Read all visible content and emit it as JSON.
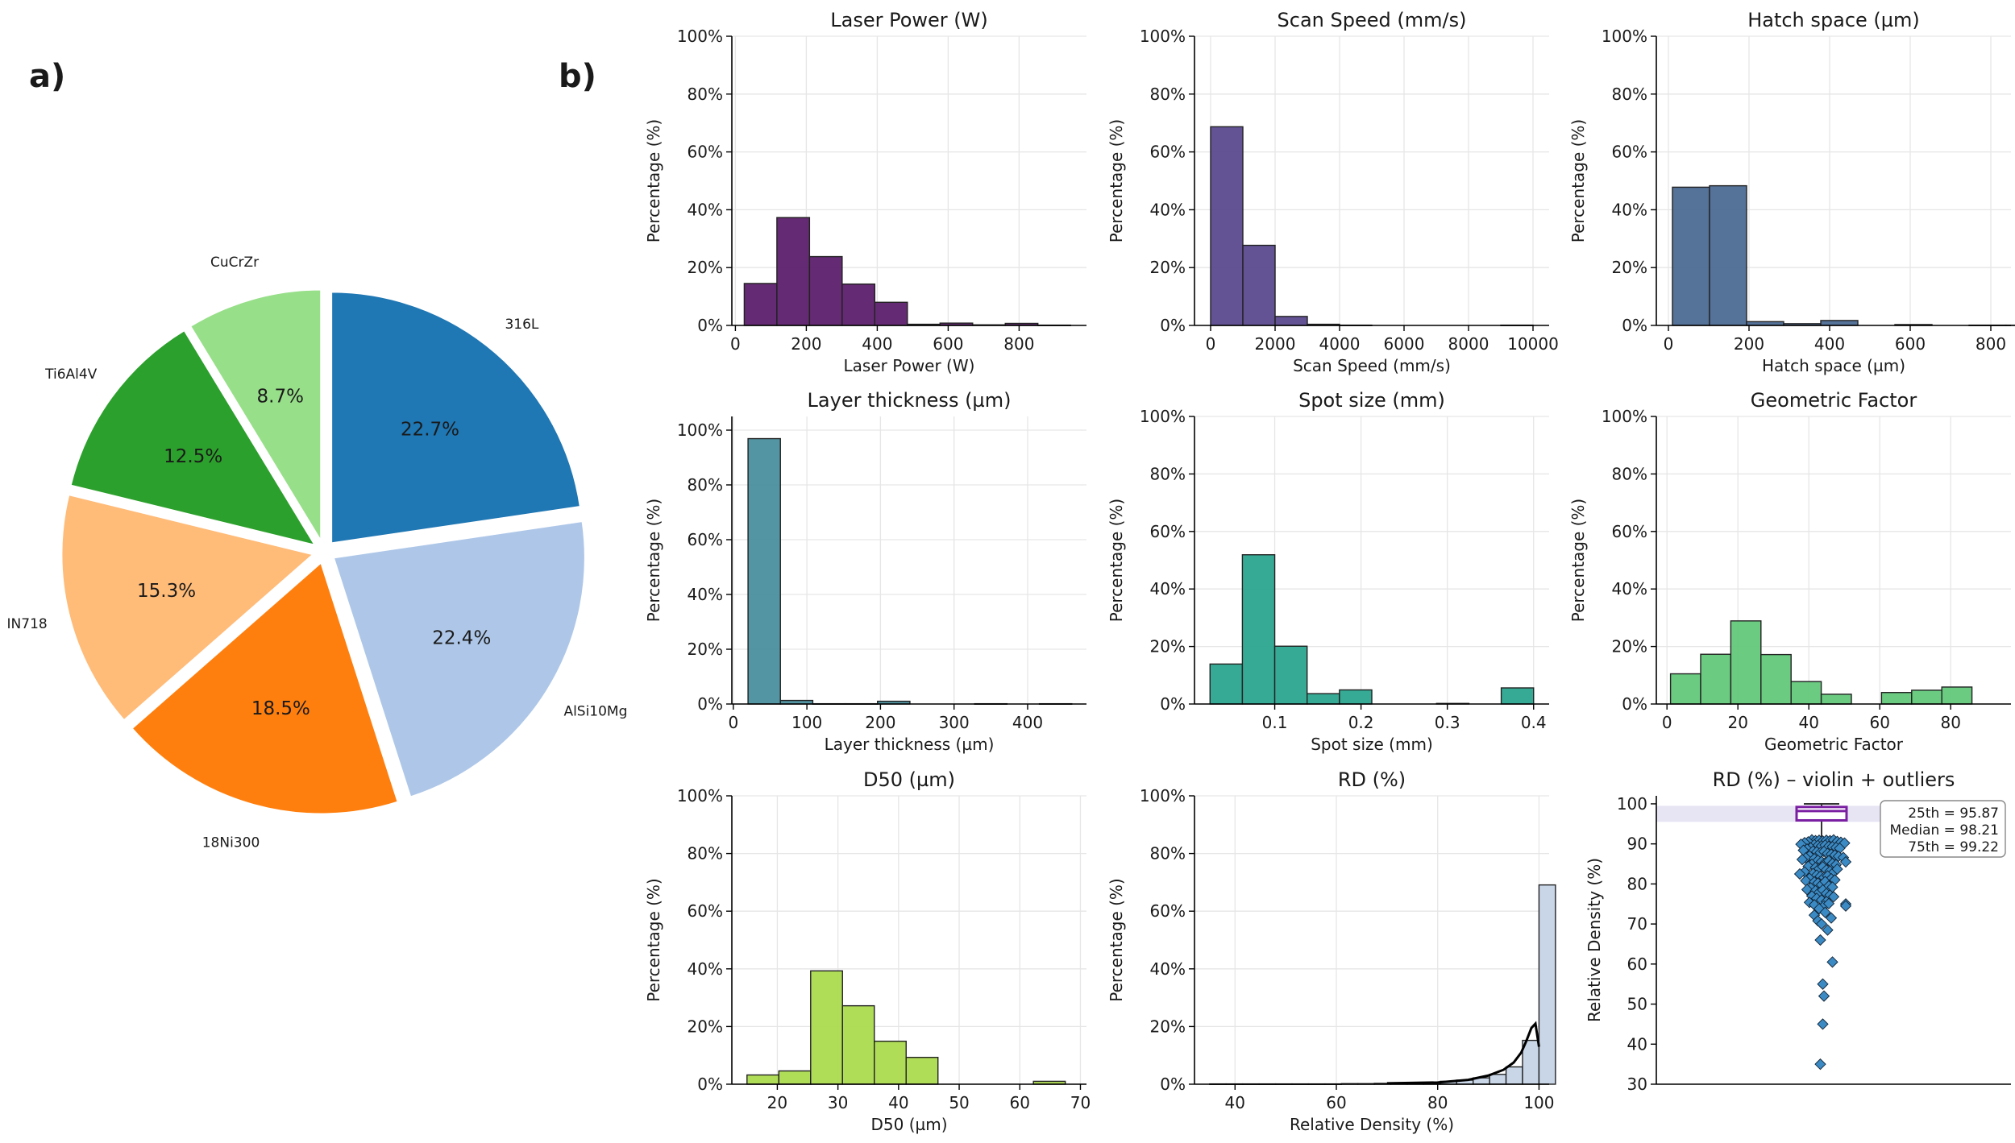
{
  "panel_labels": {
    "a": "a)",
    "b": "b)"
  },
  "colors": {
    "pie": [
      "#1f77b4",
      "#aec7e8",
      "#ff7f0e",
      "#ffbb78",
      "#2ca02c",
      "#98df8a"
    ],
    "laser_power": "#5c1f6b",
    "scan_speed": "#5b4a8f",
    "hatch_space": "#4c6a93",
    "layer_thickness": "#4a8f9e",
    "spot_size": "#2ba58f",
    "geometric_factor": "#62c87a",
    "d50": "#acdb4f",
    "rd": "#c9d6e8",
    "violin_box": "#7a1fa2",
    "scatter": "#3b8ac4"
  },
  "chart_data": [
    {
      "id": "materials",
      "type": "pie",
      "title": "",
      "labels": [
        "316L",
        "AlSi10Mg",
        "18Ni300",
        "IN718",
        "Ti6Al4V",
        "CuCrZr"
      ],
      "values": [
        22.7,
        22.4,
        18.5,
        15.3,
        12.5,
        8.7
      ],
      "autopct": [
        "22.7%",
        "22.4%",
        "18.5%",
        "15.3%",
        "12.5%",
        "8.7%"
      ],
      "start_angle_deg": 90,
      "direction": "clockwise",
      "exploded": true
    },
    {
      "id": "laser_power",
      "type": "bar",
      "title": "Laser Power (W)",
      "xlabel": "Laser Power (W)",
      "ylabel": "Percentage (%)",
      "bin_width": 92,
      "x_start": 25,
      "values": [
        14.5,
        37.3,
        23.8,
        14.3,
        8.0,
        0.4,
        0.8,
        0.2,
        0.7,
        0.1
      ],
      "xlim": [
        -10,
        990
      ],
      "ylim": [
        0,
        100
      ],
      "xticks": [
        0,
        200,
        400,
        600,
        800
      ],
      "xtick_labels": [
        "0",
        "200",
        "400",
        "600",
        "800"
      ],
      "yticks": [
        0,
        20,
        40,
        60,
        80,
        100
      ],
      "ytick_labels": [
        "0%",
        "20%",
        "40%",
        "60%",
        "80%",
        "100%"
      ],
      "grid": true
    },
    {
      "id": "scan_speed",
      "type": "bar",
      "title": "Scan Speed (mm/s)",
      "xlabel": "Scan Speed (mm/s)",
      "ylabel": "Percentage (%)",
      "bin_width": 1000,
      "x_start": 0,
      "values": [
        68.7,
        27.7,
        3.1,
        0.4,
        0.1,
        0,
        0,
        0,
        0,
        0.1
      ],
      "xlim": [
        -500,
        10500
      ],
      "ylim": [
        0,
        100
      ],
      "xticks": [
        0,
        2000,
        4000,
        6000,
        8000,
        10000
      ],
      "xtick_labels": [
        "0",
        "2000",
        "4000",
        "6000",
        "8000",
        "10000"
      ],
      "yticks": [
        0,
        20,
        40,
        60,
        80,
        100
      ],
      "ytick_labels": [
        "0%",
        "20%",
        "40%",
        "60%",
        "80%",
        "100%"
      ],
      "grid": true
    },
    {
      "id": "hatch_space",
      "type": "bar",
      "title": "Hatch space (µm)",
      "xlabel": "Hatch space (µm)",
      "ylabel": "Percentage (%)",
      "bin_width": 92,
      "x_start": 10,
      "values": [
        47.8,
        48.3,
        1.3,
        0.6,
        1.7,
        0,
        0.3,
        0,
        0.1,
        0.1
      ],
      "xlim": [
        -30,
        850
      ],
      "ylim": [
        0,
        100
      ],
      "xticks": [
        0,
        200,
        400,
        600,
        800
      ],
      "xtick_labels": [
        "0",
        "200",
        "400",
        "600",
        "800"
      ],
      "yticks": [
        0,
        20,
        40,
        60,
        80,
        100
      ],
      "ytick_labels": [
        "0%",
        "20%",
        "40%",
        "60%",
        "80%",
        "100%"
      ],
      "grid": true
    },
    {
      "id": "layer_thickness",
      "type": "bar",
      "title": "Layer thickness (µm)",
      "xlabel": "Layer thickness (µm)",
      "ylabel": "Percentage (%)",
      "bin_width": 44,
      "x_start": 20,
      "values": [
        96.9,
        1.3,
        0.1,
        0.1,
        1.0,
        0,
        0,
        0.1,
        0,
        0.1
      ],
      "xlim": [
        -2,
        480
      ],
      "ylim": [
        0,
        105
      ],
      "xticks": [
        0,
        100,
        200,
        300,
        400
      ],
      "xtick_labels": [
        "0",
        "100",
        "200",
        "300",
        "400"
      ],
      "yticks": [
        0,
        20,
        40,
        60,
        80,
        100
      ],
      "ytick_labels": [
        "0%",
        "20%",
        "40%",
        "60%",
        "80%",
        "100%"
      ],
      "grid": true
    },
    {
      "id": "spot_size",
      "type": "bar",
      "title": "Spot size (mm)",
      "xlabel": "Spot size (mm)",
      "ylabel": "Percentage (%)",
      "bin_width": 0.0375,
      "x_start": 0.025,
      "values": [
        13.9,
        51.9,
        20.1,
        3.6,
        4.9,
        0,
        0,
        0.2,
        0,
        5.6
      ],
      "xlim": [
        0.007,
        0.418
      ],
      "ylim": [
        0,
        100
      ],
      "xticks": [
        0.1,
        0.2,
        0.3,
        0.4
      ],
      "xtick_labels": [
        "0.1",
        "0.2",
        "0.3",
        "0.4"
      ],
      "yticks": [
        0,
        20,
        40,
        60,
        80,
        100
      ],
      "ytick_labels": [
        "0%",
        "20%",
        "40%",
        "60%",
        "80%",
        "100%"
      ],
      "grid": true
    },
    {
      "id": "geometric_factor",
      "type": "bar",
      "title": "Geometric Factor",
      "xlabel": "Geometric Factor",
      "ylabel": "Percentage (%)",
      "bin_width": 8.5,
      "x_start": 1,
      "values": [
        10.5,
        17.3,
        28.9,
        17.2,
        7.8,
        3.4,
        0,
        4.0,
        4.8,
        5.9
      ],
      "xlim": [
        -3,
        97
      ],
      "ylim": [
        0,
        100
      ],
      "xticks": [
        0,
        20,
        40,
        60,
        80
      ],
      "xtick_labels": [
        "0",
        "20",
        "40",
        "60",
        "80"
      ],
      "yticks": [
        0,
        20,
        40,
        60,
        80,
        100
      ],
      "ytick_labels": [
        "0%",
        "20%",
        "40%",
        "60%",
        "80%",
        "100%"
      ],
      "grid": true
    },
    {
      "id": "d50",
      "type": "bar",
      "title": "D50 (µm)",
      "xlabel": "D50 (µm)",
      "ylabel": "Percentage (%)",
      "bin_width": 5.25,
      "x_start": 15,
      "values": [
        3.2,
        4.6,
        39.3,
        27.2,
        14.9,
        9.3,
        0,
        0,
        0,
        1.0
      ],
      "xlim": [
        12.5,
        71
      ],
      "ylim": [
        0,
        100
      ],
      "xticks": [
        20,
        30,
        40,
        50,
        60,
        70
      ],
      "xtick_labels": [
        "20",
        "30",
        "40",
        "50",
        "60",
        "70"
      ],
      "yticks": [
        0,
        20,
        40,
        60,
        80,
        100
      ],
      "ytick_labels": [
        "0%",
        "20%",
        "40%",
        "60%",
        "80%",
        "100%"
      ],
      "grid": true
    },
    {
      "id": "rd",
      "type": "bar",
      "title": "RD (%)",
      "xlabel": "Relative Density (%)",
      "ylabel": "Percentage (%)",
      "bin_width": 3.25,
      "x_start": 35,
      "values": [
        0.1,
        0.1,
        0.1,
        0.1,
        0.1,
        0.1,
        0.1,
        0.1,
        0.2,
        0.2,
        0.3,
        0.2,
        0.4,
        0.6,
        1.0,
        1.4,
        2.2,
        3.4,
        6.0,
        15.2,
        69.1
      ],
      "kde_x": [
        70,
        80,
        86,
        90,
        93,
        95,
        96.5,
        97.5,
        98.5,
        99.3,
        100
      ],
      "kde_y": [
        0.3,
        0.6,
        1.5,
        3,
        5,
        7.5,
        11,
        15,
        19.5,
        21,
        13
      ],
      "xlim": [
        32,
        102
      ],
      "ylim": [
        0,
        100
      ],
      "xticks": [
        40,
        60,
        80,
        100
      ],
      "xtick_labels": [
        "40",
        "60",
        "80",
        "100"
      ],
      "yticks": [
        0,
        20,
        40,
        60,
        80,
        100
      ],
      "ytick_labels": [
        "0%",
        "20%",
        "40%",
        "60%",
        "80%",
        "100%"
      ],
      "grid": true
    },
    {
      "id": "rd_violin",
      "type": "scatter",
      "title": "RD (%) – violin + outliers",
      "xlabel": "",
      "ylabel": "Relative Density (%)",
      "ylim": [
        30,
        102
      ],
      "yticks": [
        30,
        40,
        50,
        60,
        70,
        80,
        90,
        100
      ],
      "ytick_labels": [
        "30",
        "40",
        "50",
        "60",
        "70",
        "80",
        "90",
        "100"
      ],
      "box": {
        "q1": 95.87,
        "median": 98.21,
        "q3": 99.22,
        "whisker_low": 91.2,
        "whisker_high": 100
      },
      "stats_text": [
        "25th = 95.87",
        "Median = 98.21",
        "75th = 99.22"
      ],
      "outliers": [
        {
          "x": -0.08,
          "y": 91.0
        },
        {
          "x": -0.05,
          "y": 90.8
        },
        {
          "x": -0.02,
          "y": 90.9
        },
        {
          "x": 0.01,
          "y": 90.7
        },
        {
          "x": 0.04,
          "y": 90.9
        },
        {
          "x": 0.07,
          "y": 90.8
        },
        {
          "x": 0.1,
          "y": 91.0
        },
        {
          "x": 0.13,
          "y": 90.6
        },
        {
          "x": 0.16,
          "y": 90.4
        },
        {
          "x": 0.19,
          "y": 90.2
        },
        {
          "x": -0.11,
          "y": 90.5
        },
        {
          "x": -0.14,
          "y": 90.3
        },
        {
          "x": -0.17,
          "y": 89.9
        },
        {
          "x": -0.06,
          "y": 89.8
        },
        {
          "x": -0.03,
          "y": 89.6
        },
        {
          "x": 0.0,
          "y": 89.5
        },
        {
          "x": 0.03,
          "y": 89.7
        },
        {
          "x": 0.06,
          "y": 89.4
        },
        {
          "x": 0.09,
          "y": 89.3
        },
        {
          "x": 0.12,
          "y": 89.1
        },
        {
          "x": 0.15,
          "y": 88.9
        },
        {
          "x": -0.09,
          "y": 89.0
        },
        {
          "x": -0.12,
          "y": 88.7
        },
        {
          "x": -0.15,
          "y": 88.4
        },
        {
          "x": -0.07,
          "y": 88.2
        },
        {
          "x": -0.04,
          "y": 88.0
        },
        {
          "x": -0.01,
          "y": 87.8
        },
        {
          "x": 0.02,
          "y": 88.1
        },
        {
          "x": 0.05,
          "y": 87.6
        },
        {
          "x": 0.08,
          "y": 87.4
        },
        {
          "x": 0.11,
          "y": 87.2
        },
        {
          "x": 0.14,
          "y": 86.9
        },
        {
          "x": 0.18,
          "y": 86.6
        },
        {
          "x": -0.1,
          "y": 87.0
        },
        {
          "x": -0.13,
          "y": 86.5
        },
        {
          "x": -0.16,
          "y": 86.1
        },
        {
          "x": -0.06,
          "y": 86.3
        },
        {
          "x": -0.03,
          "y": 85.9
        },
        {
          "x": 0.0,
          "y": 85.6
        },
        {
          "x": 0.03,
          "y": 85.3
        },
        {
          "x": 0.06,
          "y": 85.8
        },
        {
          "x": 0.09,
          "y": 85.1
        },
        {
          "x": 0.12,
          "y": 84.8
        },
        {
          "x": 0.2,
          "y": 85.5
        },
        {
          "x": -0.08,
          "y": 84.9
        },
        {
          "x": -0.11,
          "y": 84.4
        },
        {
          "x": -0.05,
          "y": 84.1
        },
        {
          "x": -0.02,
          "y": 83.8
        },
        {
          "x": 0.01,
          "y": 84.3
        },
        {
          "x": 0.04,
          "y": 83.5
        },
        {
          "x": 0.07,
          "y": 83.2
        },
        {
          "x": 0.1,
          "y": 82.9
        },
        {
          "x": 0.13,
          "y": 83.7
        },
        {
          "x": -0.14,
          "y": 83.0
        },
        {
          "x": -0.18,
          "y": 82.5
        },
        {
          "x": -0.07,
          "y": 82.6
        },
        {
          "x": -0.04,
          "y": 82.2
        },
        {
          "x": -0.01,
          "y": 81.9
        },
        {
          "x": 0.02,
          "y": 81.6
        },
        {
          "x": 0.05,
          "y": 82.0
        },
        {
          "x": 0.08,
          "y": 81.3
        },
        {
          "x": 0.11,
          "y": 81.0
        },
        {
          "x": -0.1,
          "y": 81.4
        },
        {
          "x": -0.13,
          "y": 80.8
        },
        {
          "x": -0.06,
          "y": 80.5
        },
        {
          "x": -0.03,
          "y": 80.2
        },
        {
          "x": 0.0,
          "y": 79.8
        },
        {
          "x": 0.03,
          "y": 80.6
        },
        {
          "x": 0.06,
          "y": 79.5
        },
        {
          "x": 0.09,
          "y": 79.2
        },
        {
          "x": -0.09,
          "y": 79.0
        },
        {
          "x": -0.12,
          "y": 78.6
        },
        {
          "x": -0.05,
          "y": 78.3
        },
        {
          "x": -0.02,
          "y": 77.9
        },
        {
          "x": 0.01,
          "y": 78.5
        },
        {
          "x": 0.04,
          "y": 77.6
        },
        {
          "x": 0.07,
          "y": 77.2
        },
        {
          "x": 0.1,
          "y": 76.8
        },
        {
          "x": -0.08,
          "y": 77.0
        },
        {
          "x": -0.04,
          "y": 76.4
        },
        {
          "x": 0.0,
          "y": 76.0
        },
        {
          "x": 0.04,
          "y": 75.6
        },
        {
          "x": -0.1,
          "y": 75.4
        },
        {
          "x": -0.06,
          "y": 74.8
        },
        {
          "x": 0.02,
          "y": 74.5
        },
        {
          "x": 0.06,
          "y": 75.1
        },
        {
          "x": 0.2,
          "y": 75.0
        },
        {
          "x": 0.2,
          "y": 74.5
        },
        {
          "x": -0.02,
          "y": 73.8
        },
        {
          "x": 0.03,
          "y": 72.9
        },
        {
          "x": -0.06,
          "y": 72.2
        },
        {
          "x": 0.08,
          "y": 71.5
        },
        {
          "x": -0.03,
          "y": 70.8
        },
        {
          "x": 0.0,
          "y": 70.0
        },
        {
          "x": 0.05,
          "y": 68.5
        },
        {
          "x": -0.01,
          "y": 66.0
        },
        {
          "x": 0.09,
          "y": 60.5
        },
        {
          "x": 0.01,
          "y": 55.0
        },
        {
          "x": 0.02,
          "y": 52.0
        },
        {
          "x": 0.01,
          "y": 45.0
        },
        {
          "x": -0.01,
          "y": 35.0
        }
      ],
      "grid": false
    }
  ]
}
